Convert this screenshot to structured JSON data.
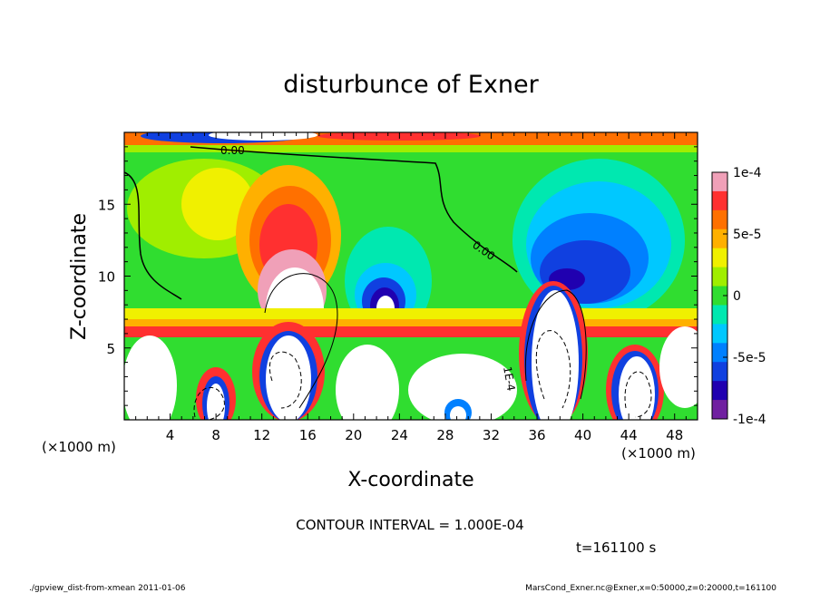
{
  "chart_data": {
    "type": "heatmap",
    "title": "disturbunce of Exner",
    "xlabel": "X-coordinate",
    "ylabel": "Z-coordinate",
    "x_unit_left": "(×1000 m)",
    "x_unit_right": "(×1000 m)",
    "xlim": [
      0,
      50
    ],
    "ylim": [
      0,
      20
    ],
    "xticks": [
      4,
      8,
      12,
      16,
      20,
      24,
      28,
      32,
      36,
      40,
      44,
      48
    ],
    "yticks": [
      5,
      10,
      15
    ],
    "colorbar": {
      "min": -0.0001,
      "max": 0.0001,
      "tick_values": [
        0.0001,
        5e-05,
        0,
        -5e-05,
        -0.0001
      ],
      "tick_labels": [
        "1e-4",
        "5e-5",
        "0",
        "-5e-5",
        "-1e-4"
      ],
      "colors": [
        "#f0a0b8",
        "#ff3030",
        "#ff7000",
        "#ffb000",
        "#f0f000",
        "#a0ee00",
        "#30dd30",
        "#00e8b0",
        "#00c8ff",
        "#0080ff",
        "#1040e0",
        "#2000b0",
        "#7020a0"
      ]
    },
    "contour_labels": [
      "0.00",
      "0.00",
      "1E-4"
    ],
    "contour_interval_text": "CONTOUR INTERVAL = 1.000E-04",
    "time_text": "t=161100 s"
  },
  "footer": {
    "left": "./gpview_dist-from-xmean  2011-01-06",
    "right": "MarsCond_Exner.nc@Exner,x=0:50000,z=0:20000,t=161100"
  }
}
